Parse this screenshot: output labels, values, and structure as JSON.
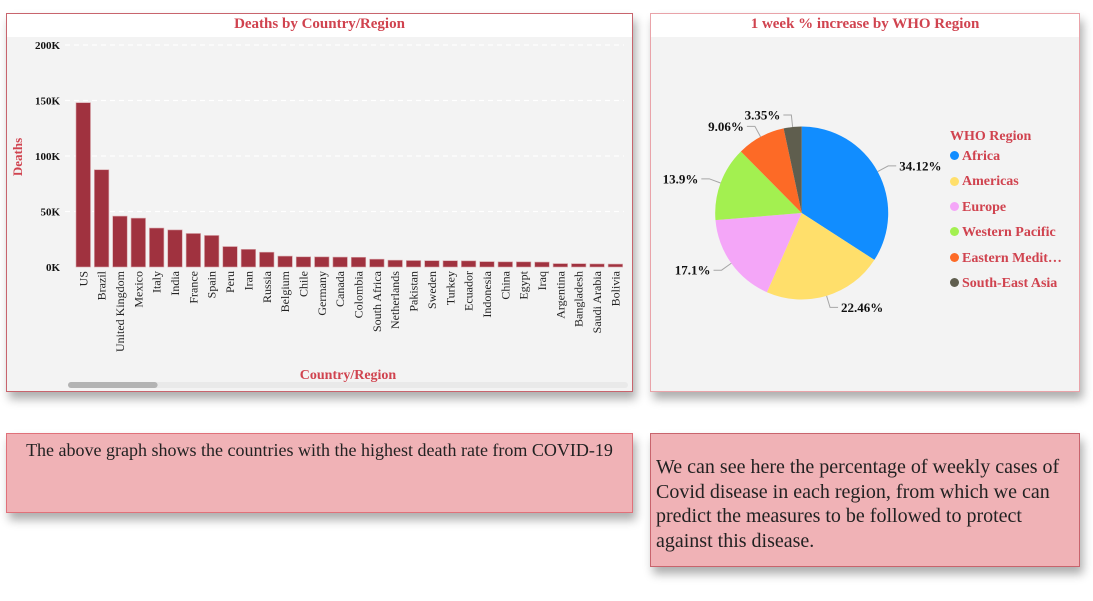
{
  "chart_data": [
    {
      "type": "bar",
      "title": "Deaths by Country/Region",
      "xlabel": "Country/Region",
      "ylabel": "Deaths",
      "ylim": [
        0,
        200000
      ],
      "yticks": [
        0,
        50000,
        100000,
        150000,
        200000
      ],
      "ytick_labels": [
        "0K",
        "50K",
        "100K",
        "150K",
        "200K"
      ],
      "grid": true,
      "bar_color": "#a0323f",
      "categories": [
        "US",
        "Brazil",
        "United Kingdom",
        "Mexico",
        "Italy",
        "India",
        "France",
        "Spain",
        "Peru",
        "Iran",
        "Russia",
        "Belgium",
        "Chile",
        "Germany",
        "Canada",
        "Colombia",
        "South Africa",
        "Netherlands",
        "Pakistan",
        "Sweden",
        "Turkey",
        "Ecuador",
        "Indonesia",
        "China",
        "Egypt",
        "Iraq",
        "Argentina",
        "Bangladesh",
        "Saudi Arabia",
        "Bolivia"
      ],
      "values": [
        148011,
        87618,
        45844,
        44022,
        35112,
        33408,
        30212,
        28432,
        18418,
        15912,
        13334,
        9822,
        9187,
        9125,
        8944,
        8777,
        7067,
        6160,
        5842,
        5700,
        5655,
        5532,
        4838,
        4641,
        4652,
        4458,
        3059,
        3000,
        2760,
        2647
      ],
      "scrollbar": {
        "position": 0.0,
        "visible_fraction": 0.16
      }
    },
    {
      "type": "pie",
      "title": "1 week % increase by WHO Region",
      "legend_title": "WHO Region",
      "legend_position": "right",
      "categories": [
        "Africa",
        "Americas",
        "Europe",
        "Western Pacific",
        "Eastern Medit…",
        "South-East Asia"
      ],
      "values": [
        34.12,
        22.46,
        17.1,
        13.9,
        9.06,
        3.35
      ],
      "data_labels": [
        "34.12%",
        "22.46%",
        "17.1%",
        "13.9%",
        "9.06%",
        "3.35%"
      ],
      "colors": [
        "#118dff",
        "#ffdf6b",
        "#f4a6f8",
        "#a3f050",
        "#fd6a26",
        "#5f5e4e"
      ],
      "start_angle": "12 o'clock, clockwise"
    }
  ],
  "notes": {
    "left": "The above graph shows the countries with the highest death rate from COVID-19",
    "right": "We can see here the percentage of weekly cases of Covid disease in each region, from which we can predict the measures to be followed to protect against this disease."
  }
}
